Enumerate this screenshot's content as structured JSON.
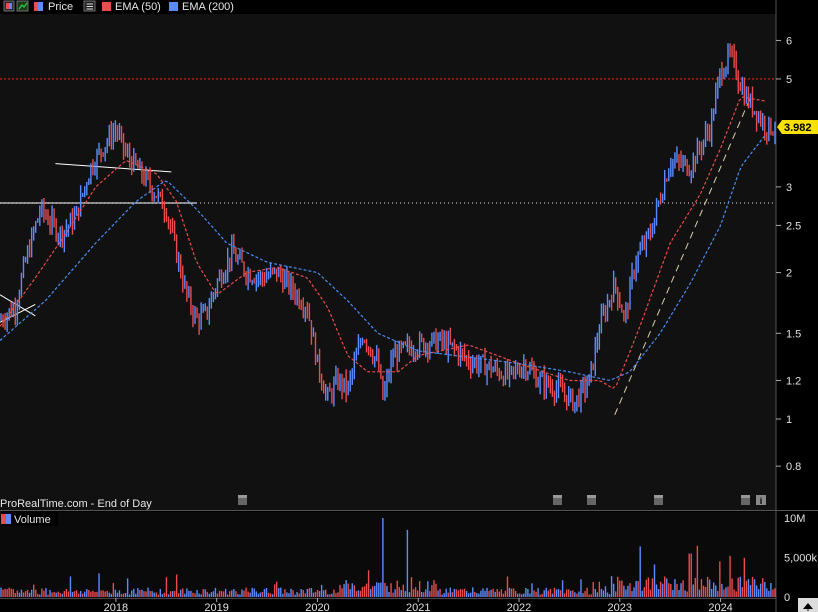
{
  "legend": {
    "price_label": "Price",
    "ema50_label": "EMA (50)",
    "ema200_label": "EMA (200)"
  },
  "watermark": "ProRealTime.com - End of Day",
  "volume_label": "Volume",
  "last_price_label": "3.982",
  "colors": {
    "background": "#000000",
    "up_bar": "#5b8cff",
    "down_bar": "#e84c4c",
    "ema50": "#e84c4c",
    "ema200": "#4a8cf0",
    "resistance_line": "#e02020",
    "price_tag_bg": "#f5e000",
    "trendline": "#ffffff"
  },
  "icons": [
    "color-swatch-icon",
    "trend-arrow-icon",
    "bars-icon",
    "calendar-icon",
    "info-icon",
    "scroll-up-icon"
  ],
  "chart_data": [
    {
      "type": "line",
      "title": "Price",
      "scale": "log",
      "y_ticks": [
        "0.8",
        "1",
        "1.2",
        "1.5",
        "2",
        "2.5",
        "3",
        "5",
        "6"
      ],
      "x_ticks": [
        "2018",
        "2019",
        "2020",
        "2021",
        "2022",
        "2023",
        "2024"
      ],
      "ylim": [
        0.65,
        6.8
      ],
      "xlim": [
        2016.85,
        2024.55
      ],
      "horizontal_levels": [
        5.0,
        2.78
      ],
      "last_price": 3.982,
      "series": [
        {
          "name": "Price",
          "x": [
            2016.85,
            2017.0,
            2017.1,
            2017.25,
            2017.45,
            2017.6,
            2017.75,
            2017.9,
            2018.0,
            2018.1,
            2018.2,
            2018.35,
            2018.5,
            2018.6,
            2018.7,
            2018.8,
            2018.9,
            2019.0,
            2019.15,
            2019.3,
            2019.45,
            2019.6,
            2019.75,
            2019.9,
            2020.0,
            2020.1,
            2020.2,
            2020.3,
            2020.45,
            2020.6,
            2020.65,
            2020.75,
            2020.9,
            2021.0,
            2021.2,
            2021.35,
            2021.5,
            2021.7,
            2021.9,
            2022.05,
            2022.2,
            2022.4,
            2022.55,
            2022.7,
            2022.8,
            2022.95,
            2023.05,
            2023.15,
            2023.3,
            2023.5,
            2023.7,
            2023.9,
            2024.0,
            2024.1,
            2024.18,
            2024.25,
            2024.35,
            2024.45
          ],
          "values": [
            1.6,
            1.7,
            2.1,
            2.7,
            2.4,
            2.6,
            3.3,
            3.7,
            3.95,
            3.5,
            3.3,
            3.0,
            2.7,
            2.2,
            1.8,
            1.6,
            1.65,
            1.9,
            2.2,
            2.0,
            1.95,
            2.0,
            1.85,
            1.7,
            1.3,
            1.1,
            1.2,
            1.15,
            1.5,
            1.3,
            1.1,
            1.35,
            1.4,
            1.42,
            1.45,
            1.4,
            1.32,
            1.28,
            1.22,
            1.3,
            1.2,
            1.15,
            1.08,
            1.2,
            1.55,
            1.9,
            1.6,
            2.1,
            2.4,
            3.4,
            3.3,
            4.0,
            5.2,
            5.6,
            5.0,
            4.6,
            4.3,
            3.982
          ]
        },
        {
          "name": "EMA (50)",
          "x": [
            2016.85,
            2017.2,
            2017.5,
            2017.8,
            2018.1,
            2018.4,
            2018.6,
            2018.8,
            2019.0,
            2019.3,
            2019.6,
            2019.9,
            2020.1,
            2020.3,
            2020.5,
            2020.8,
            2021.0,
            2021.5,
            2022.0,
            2022.5,
            2022.8,
            2022.95,
            2023.2,
            2023.5,
            2023.8,
            2024.0,
            2024.2,
            2024.45
          ],
          "values": [
            1.55,
            1.95,
            2.4,
            3.0,
            3.4,
            3.2,
            2.8,
            2.1,
            1.8,
            2.0,
            2.05,
            1.95,
            1.7,
            1.35,
            1.25,
            1.25,
            1.35,
            1.42,
            1.3,
            1.2,
            1.2,
            1.15,
            1.55,
            2.3,
            2.9,
            3.6,
            4.6,
            4.5
          ]
        },
        {
          "name": "EMA (200)",
          "x": [
            2016.85,
            2017.3,
            2017.8,
            2018.2,
            2018.5,
            2018.8,
            2019.1,
            2019.5,
            2020.0,
            2020.3,
            2020.6,
            2021.0,
            2021.5,
            2022.0,
            2022.5,
            2022.9,
            2023.1,
            2023.4,
            2023.7,
            2024.0,
            2024.2,
            2024.45
          ],
          "values": [
            1.45,
            1.75,
            2.3,
            2.8,
            3.1,
            2.7,
            2.3,
            2.1,
            2.0,
            1.75,
            1.5,
            1.38,
            1.34,
            1.3,
            1.25,
            1.2,
            1.25,
            1.5,
            1.9,
            2.5,
            3.3,
            3.85
          ]
        }
      ]
    },
    {
      "type": "bar",
      "title": "Volume",
      "y_ticks": [
        "0",
        "5,000k",
        "10M"
      ],
      "ylim": [
        0,
        10500000
      ],
      "highlight_volumes": [
        {
          "x": 2020.65,
          "value": 10000000
        },
        {
          "x": 2020.9,
          "value": 8500000
        },
        {
          "x": 2023.2,
          "value": 6400000
        },
        {
          "x": 2023.7,
          "value": 5500000
        },
        {
          "x": 2024.0,
          "value": 4500000
        }
      ]
    }
  ]
}
